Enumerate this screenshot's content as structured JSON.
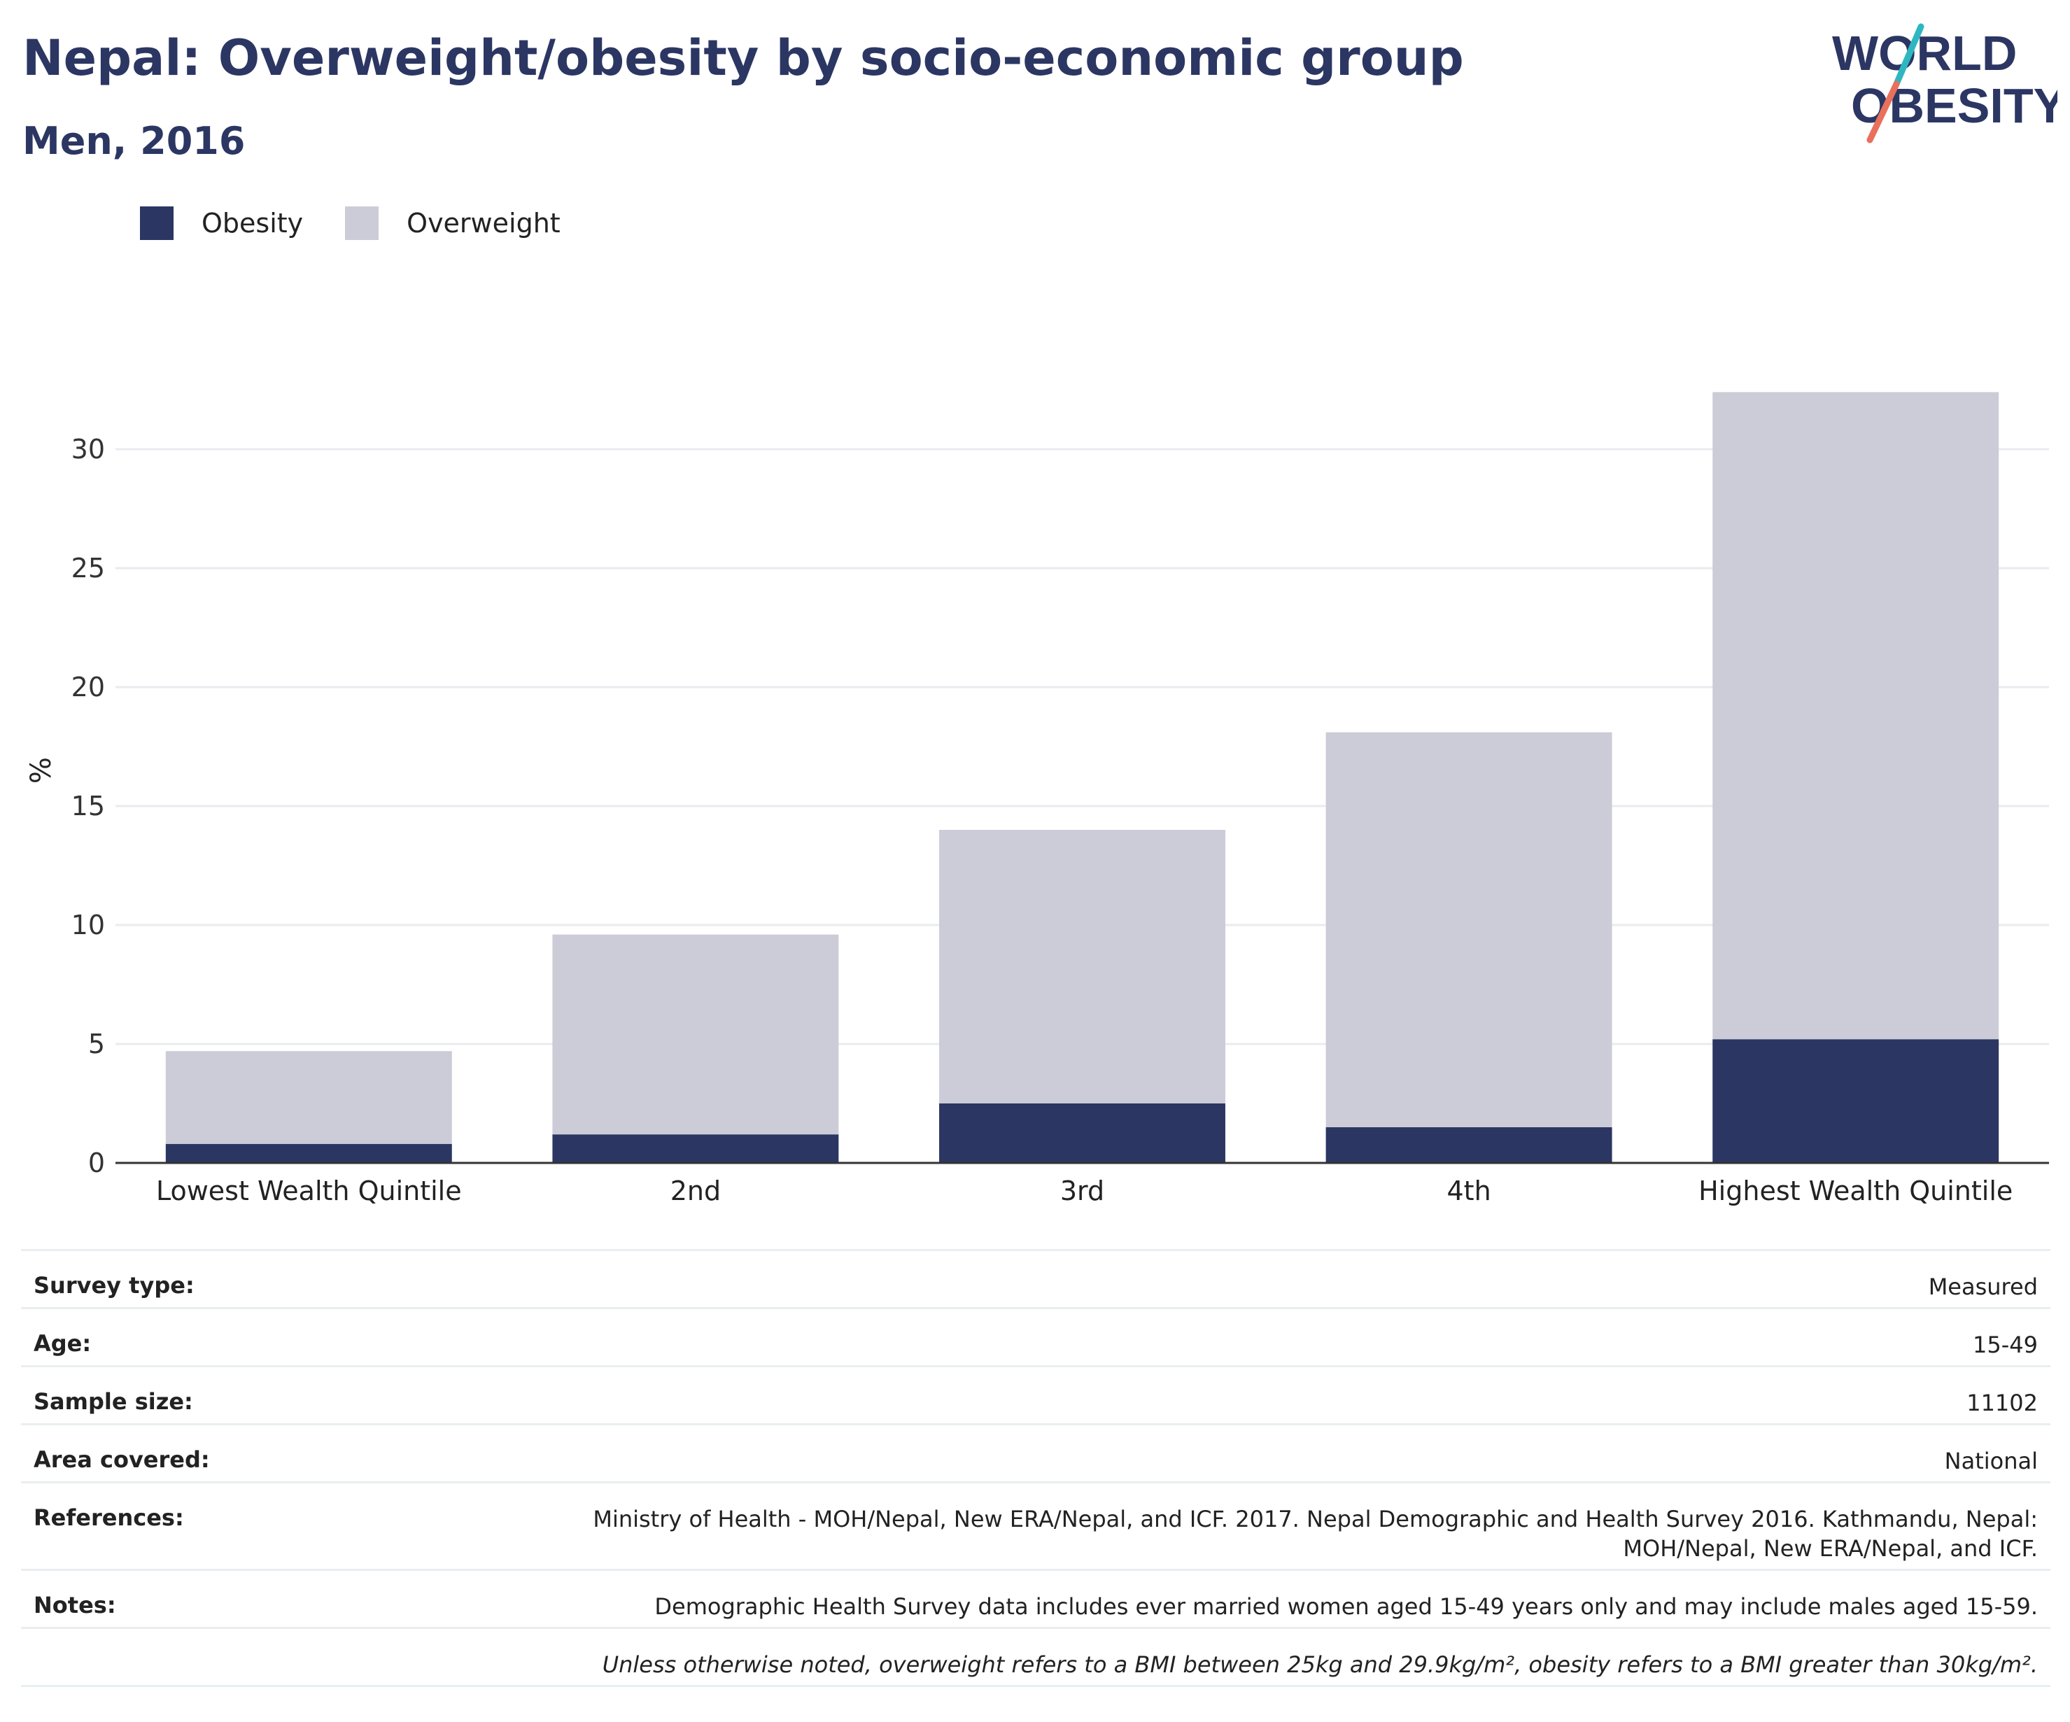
{
  "title": "Nepal: Overweight/obesity by socio-economic group",
  "subtitle": "Men, 2016",
  "logo": {
    "line1": "WORLD",
    "line2": "OBESITY",
    "colors": {
      "text": "#2b3663",
      "slash_top": "#2fb7c1",
      "slash_bottom": "#e8705c"
    }
  },
  "colors": {
    "obesity": "#2b3663",
    "overweight": "#cbccd7",
    "grid": "#e9ebef",
    "axis": "#333333"
  },
  "chart_data": {
    "type": "bar",
    "stacked": true,
    "categories": [
      "Lowest Wealth Quintile",
      "2nd",
      "3rd",
      "4th",
      "Highest Wealth Quintile"
    ],
    "series": [
      {
        "name": "Obesity",
        "values": [
          0.8,
          1.2,
          2.5,
          1.5,
          5.2
        ]
      },
      {
        "name": "Overweight",
        "values": [
          3.9,
          8.4,
          11.5,
          16.6,
          27.2
        ]
      }
    ],
    "ylabel": "%",
    "ylim": [
      0,
      33
    ],
    "yticks": [
      0,
      5,
      10,
      15,
      20,
      25,
      30
    ],
    "grid": true,
    "legend": "top-left"
  },
  "info": {
    "rows": [
      {
        "key": "Survey type:",
        "value": "Measured"
      },
      {
        "key": "Age:",
        "value": "15-49"
      },
      {
        "key": "Sample size:",
        "value": "11102"
      },
      {
        "key": "Area covered:",
        "value": "National"
      },
      {
        "key": "References:",
        "value_line1": "Ministry of Health - MOH/Nepal, New ERA/Nepal, and ICF. 2017. Nepal Demographic and Health Survey 2016. Kathmandu, Nepal:",
        "value_line2": "MOH/Nepal, New ERA/Nepal, and ICF."
      },
      {
        "key": "Notes:",
        "value": "Demographic Health Survey data includes ever married women aged 15-49 years only and may include males aged 15-59."
      }
    ],
    "footnote": "Unless otherwise noted, overweight refers to a BMI between 25kg and 29.9kg/m², obesity refers to a BMI greater than 30kg/m²."
  }
}
